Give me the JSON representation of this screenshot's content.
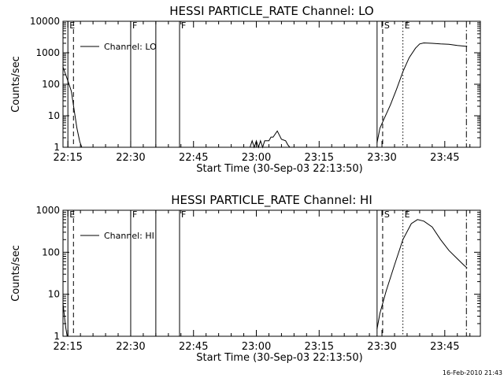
{
  "footer_timestamp": "16-Feb-2010 21:43",
  "chart_data": [
    {
      "type": "line",
      "title": "HESSI PARTICLE_RATE Channel: LO",
      "xlabel": "Start Time (30-Sep-03 22:13:50)",
      "ylabel": "Counts/sec",
      "y_scale": "log",
      "xlim": [
        "22:13:50",
        "23:53:30"
      ],
      "ylim": [
        1,
        10000
      ],
      "x_ticks": [
        "22:15",
        "22:30",
        "22:45",
        "23:00",
        "23:15",
        "23:30",
        "23:45"
      ],
      "y_ticks": [
        "1",
        "10",
        "100",
        "1000",
        "10000"
      ],
      "legend": {
        "placement": "top-left",
        "entries": [
          "Channel: LO"
        ]
      },
      "series": [
        {
          "name": "Channel: LO",
          "segments": [
            {
              "x": [
                "22:13:50",
                "22:14:30",
                "22:15:10",
                "22:15:50",
                "22:16:30",
                "22:17:10",
                "22:17:50",
                "22:18:20"
              ],
              "y": [
                350,
                200,
                110,
                60,
                15,
                4,
                1.5,
                1
              ]
            },
            {
              "x": [
                "22:58:30",
                "22:59:00",
                "22:59:30",
                "23:00:00",
                "23:00:30",
                "23:01:00",
                "23:01:30",
                "23:02:00",
                "23:02:30",
                "23:03:00",
                "23:03:30",
                "23:04:00",
                "23:05:00",
                "23:06:00",
                "23:07:00",
                "23:07:30",
                "23:08:00"
              ],
              "y": [
                1,
                1.6,
                1,
                1.6,
                1,
                1.6,
                1,
                1.6,
                1.6,
                1.6,
                2.1,
                2.1,
                3.3,
                1.8,
                1.6,
                1.2,
                1
              ]
            },
            {
              "x": [
                "23:28:50",
                "23:29:30",
                "23:30:30",
                "23:32:00",
                "23:33:30",
                "23:35:00",
                "23:36:30",
                "23:38:00",
                "23:39:00",
                "23:40:00",
                "23:42:00",
                "23:44:00",
                "23:46:00",
                "23:48:00",
                "23:50:00",
                "23:50:20"
              ],
              "y": [
                1.4,
                4,
                8,
                22,
                70,
                250,
                700,
                1400,
                1900,
                2050,
                2000,
                1900,
                1850,
                1700,
                1600,
                1600
              ]
            }
          ]
        }
      ],
      "markers": [
        {
          "label": "E",
          "x": "22:15:00",
          "style": "solid"
        },
        {
          "label": "",
          "x": "22:16:20",
          "style": "dashed"
        },
        {
          "label": "F",
          "x": "22:30:00",
          "style": "solid"
        },
        {
          "label": "",
          "x": "22:36:00",
          "style": "solid"
        },
        {
          "label": "F",
          "x": "22:41:40",
          "style": "solid"
        },
        {
          "label": "",
          "x": "23:28:50",
          "style": "solid"
        },
        {
          "label": "S",
          "x": "23:30:10",
          "style": "dashed"
        },
        {
          "label": "E",
          "x": "23:35:00",
          "style": "dotted"
        },
        {
          "label": "",
          "x": "23:50:10",
          "style": "dashdot"
        }
      ]
    },
    {
      "type": "line",
      "title": "HESSI PARTICLE_RATE Channel: HI",
      "xlabel": "Start Time (30-Sep-03 22:13:50)",
      "ylabel": "Counts/sec",
      "y_scale": "log",
      "xlim": [
        "22:13:50",
        "23:53:30"
      ],
      "ylim": [
        1,
        1000
      ],
      "x_ticks": [
        "22:15",
        "22:30",
        "22:45",
        "23:00",
        "23:15",
        "23:30",
        "23:45"
      ],
      "y_ticks": [
        "1",
        "10",
        "100",
        "1000"
      ],
      "legend": {
        "placement": "top-left",
        "entries": [
          "Channel: HI"
        ]
      },
      "series": [
        {
          "name": "Channel: HI",
          "segments": [
            {
              "x": [
                "22:13:50",
                "22:14:10",
                "22:14:30",
                "22:14:50"
              ],
              "y": [
                6,
                3,
                1.6,
                1
              ]
            },
            {
              "x": [
                "23:28:50",
                "23:29:30",
                "23:31:00",
                "23:33:00",
                "23:35:00",
                "23:37:00",
                "23:38:30",
                "23:40:00",
                "23:42:00",
                "23:44:00",
                "23:46:00",
                "23:48:00",
                "23:49:30",
                "23:50:20"
              ],
              "y": [
                1.5,
                3.5,
                12,
                50,
                200,
                480,
                600,
                550,
                400,
                200,
                110,
                70,
                50,
                42
              ]
            }
          ]
        }
      ],
      "markers": [
        {
          "label": "E",
          "x": "22:15:00",
          "style": "solid"
        },
        {
          "label": "",
          "x": "22:16:20",
          "style": "dashed"
        },
        {
          "label": "F",
          "x": "22:30:00",
          "style": "solid"
        },
        {
          "label": "",
          "x": "22:36:00",
          "style": "solid"
        },
        {
          "label": "F",
          "x": "22:41:40",
          "style": "solid"
        },
        {
          "label": "",
          "x": "23:28:50",
          "style": "solid"
        },
        {
          "label": "S",
          "x": "23:30:10",
          "style": "dashed"
        },
        {
          "label": "E",
          "x": "23:35:00",
          "style": "dotted"
        },
        {
          "label": "",
          "x": "23:50:10",
          "style": "dashdot"
        }
      ]
    }
  ]
}
